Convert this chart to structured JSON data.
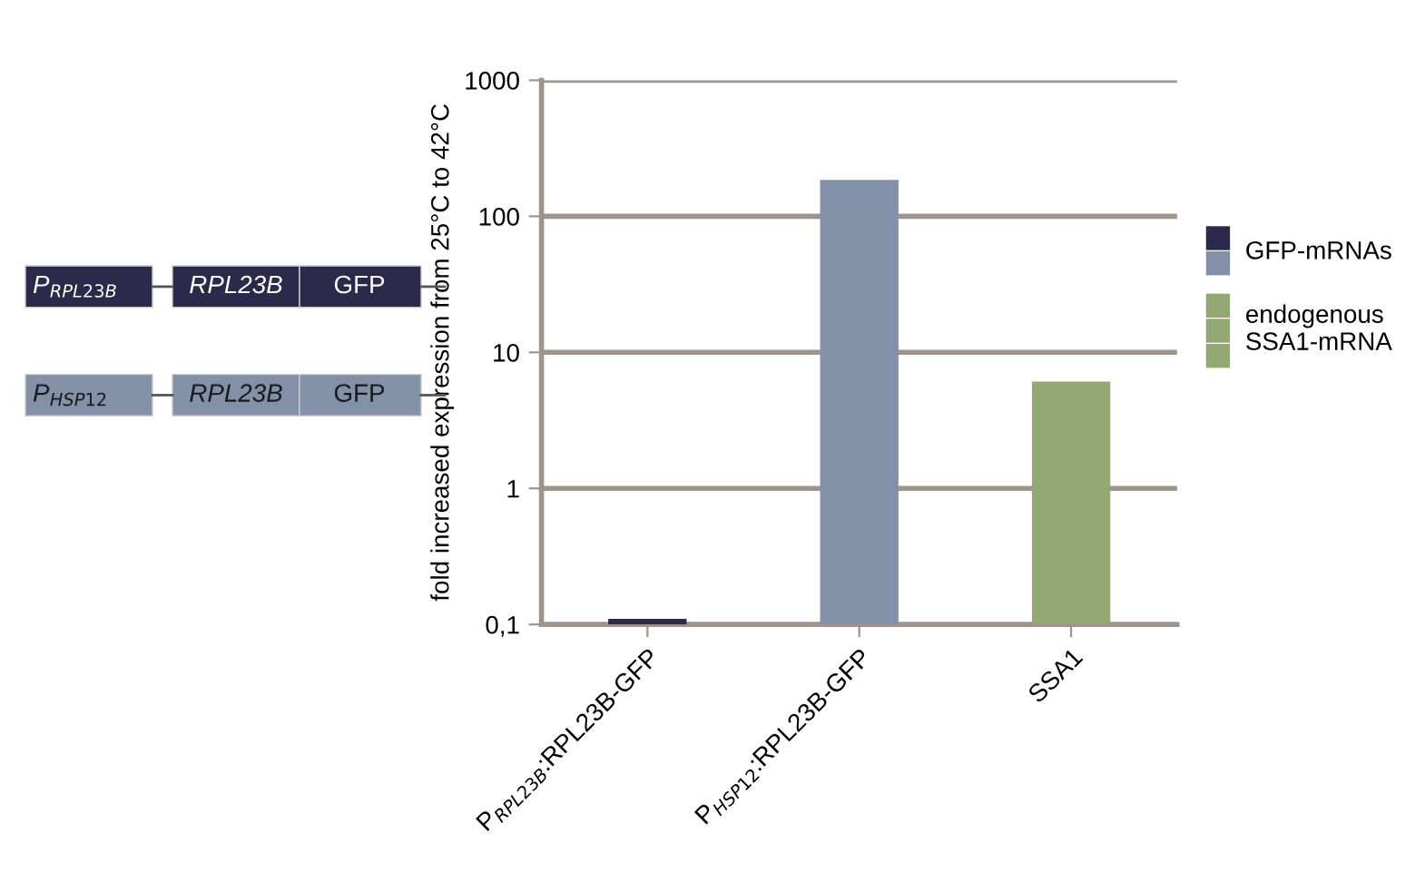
{
  "chart_data": {
    "type": "bar",
    "ylabel": "fold increased expression from 25°C to 42°C",
    "categories": [
      "P$_{RPL23B}$:RPL23B-GFP",
      "P$_{HSP12}$:RPL23B-GFP",
      "SSA1"
    ],
    "series": [
      {
        "name": "GFP-mRNAs",
        "colors": [
          "#2b2a4c",
          "#8291a8",
          null
        ],
        "values": [
          0.11,
          185,
          null
        ]
      },
      {
        "name": "endogenous\nSSA1-mRNA",
        "color": "#93a873",
        "values": [
          null,
          null,
          6.1
        ]
      }
    ],
    "log": true,
    "ylim": [
      0.1,
      1000
    ],
    "yticks": [
      {
        "value": 0.1,
        "label": "0,1"
      },
      1,
      10,
      100,
      1000
    ],
    "grid": "y",
    "legend": "right",
    "annotations": [
      "P$_{RPL23B}$",
      "RPL23B",
      "GFP",
      "P$_{HSP12}$",
      "RPL23B",
      "GFP"
    ]
  }
}
